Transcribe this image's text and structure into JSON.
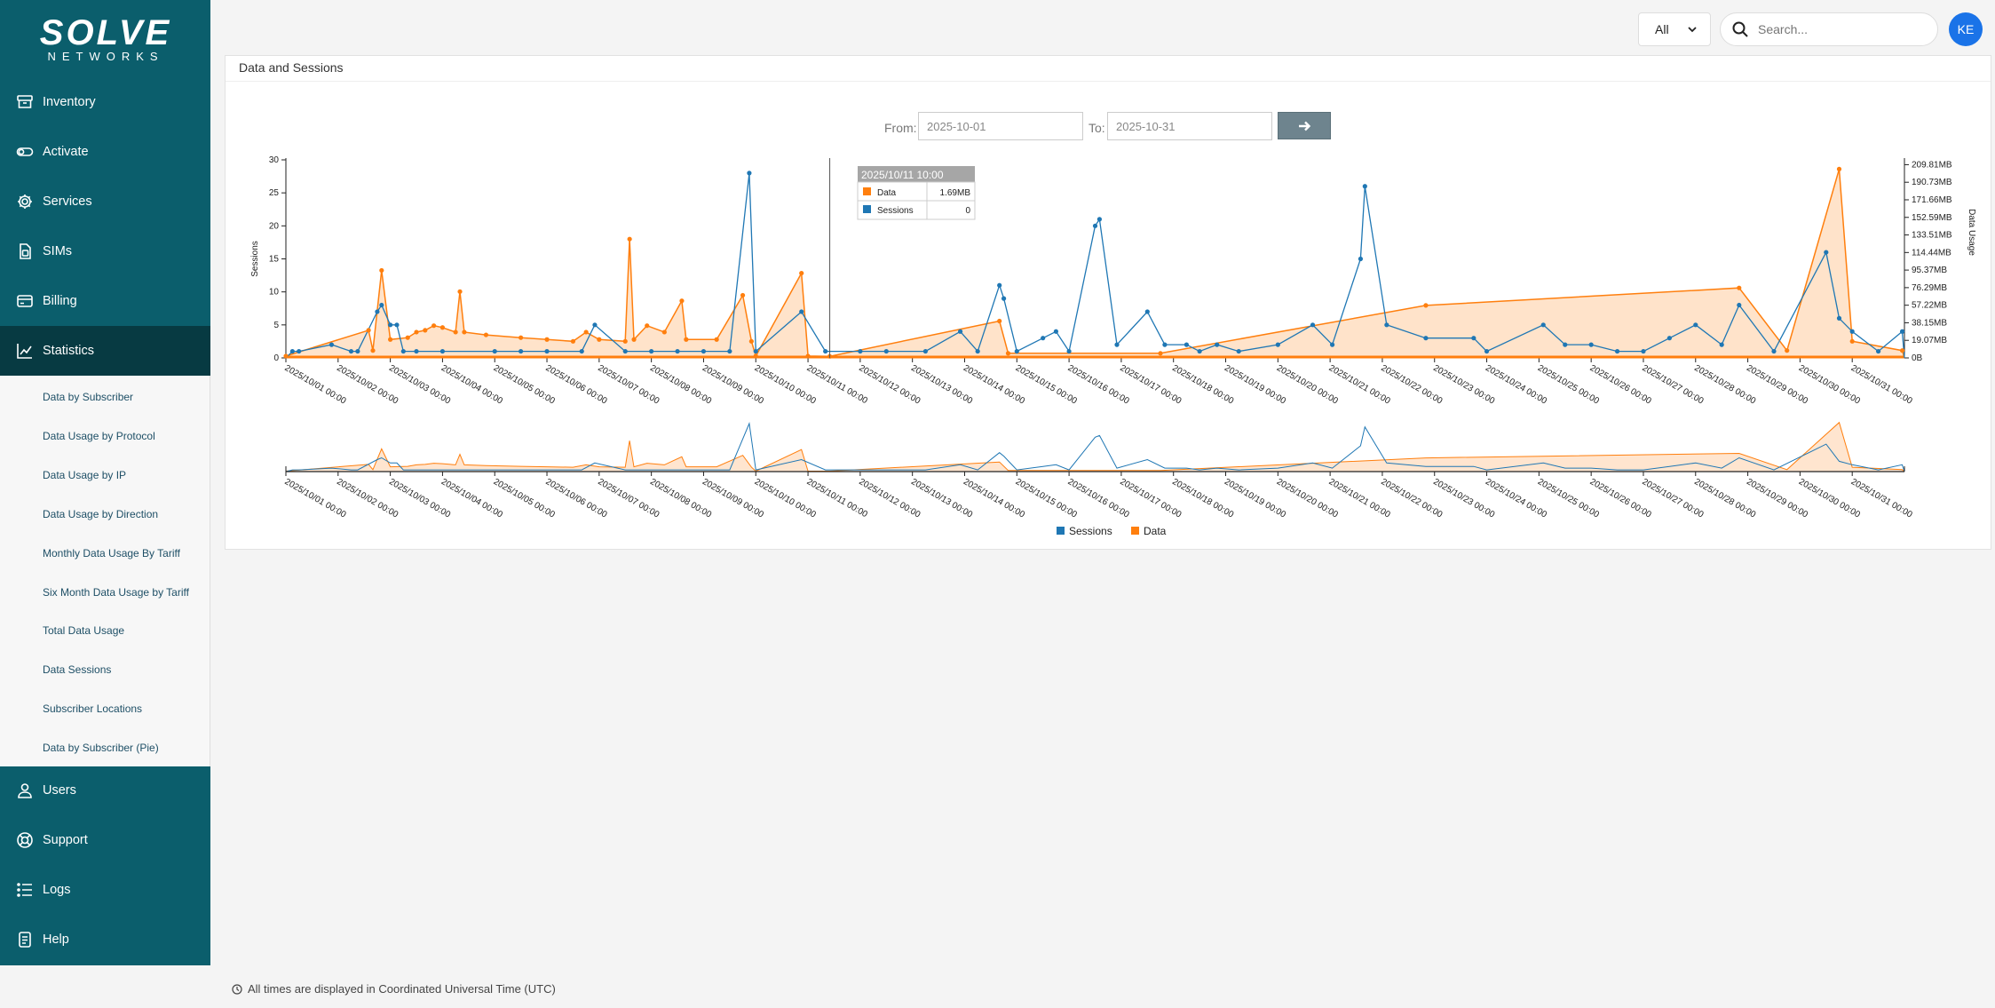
{
  "brand": {
    "name": "SOLVE",
    "tagline": "NETWORKS"
  },
  "sidebar": {
    "items": [
      {
        "label": "Inventory",
        "icon": "inventory-icon"
      },
      {
        "label": "Activate",
        "icon": "activate-icon"
      },
      {
        "label": "Services",
        "icon": "gear-icon"
      },
      {
        "label": "SIMs",
        "icon": "sim-icon"
      },
      {
        "label": "Billing",
        "icon": "card-icon"
      },
      {
        "label": "Statistics",
        "icon": "chart-icon",
        "active": true
      },
      {
        "label": "Users",
        "icon": "user-icon"
      },
      {
        "label": "Support",
        "icon": "lifebuoy-icon"
      },
      {
        "label": "Logs",
        "icon": "list-icon"
      },
      {
        "label": "Help",
        "icon": "document-icon"
      }
    ],
    "statistics_submenu": [
      "Data by Subscriber",
      "Data Usage by Protocol",
      "Data Usage by IP",
      "Data Usage by Direction",
      "Monthly Data Usage By Tariff",
      "Six Month Data Usage by Tariff",
      "Total Data Usage",
      "Data Sessions",
      "Subscriber Locations",
      "Data by Subscriber (Pie)"
    ]
  },
  "topbar": {
    "filter_value": "All",
    "search_placeholder": "Search...",
    "avatar_initials": "KE"
  },
  "panel": {
    "title": "Data and Sessions",
    "from_label": "From:",
    "from_value": "2025-10-01",
    "to_label": "To:",
    "to_value": "2025-10-31"
  },
  "tooltip": {
    "title": "2025/10/11 10:00",
    "rows": [
      {
        "name": "Data",
        "value": "1.69MB"
      },
      {
        "name": "Sessions",
        "value": "0"
      }
    ]
  },
  "footer_note": "All times are displayed in Coordinated Universal Time (UTC)",
  "chart_data": {
    "type": "line",
    "ylabel": "Sessions",
    "y2label": "Data Usage",
    "ylim": [
      0,
      30
    ],
    "y_ticks": [
      0,
      5,
      10,
      15,
      20,
      25,
      30
    ],
    "y2_ticks": [
      "0B",
      "19.07MB",
      "38.15MB",
      "57.22MB",
      "76.29MB",
      "95.37MB",
      "114.44MB",
      "133.51MB",
      "152.59MB",
      "171.66MB",
      "190.73MB",
      "209.81MB"
    ],
    "y2_max_mb": 215,
    "xlim_days": [
      1,
      32
    ],
    "x_ticks": [
      "2025/10/01 00:00",
      "2025/10/02 00:00",
      "2025/10/03 00:00",
      "2025/10/04 00:00",
      "2025/10/05 00:00",
      "2025/10/06 00:00",
      "2025/10/07 00:00",
      "2025/10/08 00:00",
      "2025/10/09 00:00",
      "2025/10/10 00:00",
      "2025/10/11 00:00",
      "2025/10/12 00:00",
      "2025/10/13 00:00",
      "2025/10/14 00:00",
      "2025/10/15 00:00",
      "2025/10/16 00:00",
      "2025/10/17 00:00",
      "2025/10/18 00:00",
      "2025/10/19 00:00",
      "2025/10/20 00:00",
      "2025/10/21 00:00",
      "2025/10/22 00:00",
      "2025/10/23 00:00",
      "2025/10/24 00:00",
      "2025/10/25 00:00",
      "2025/10/26 00:00",
      "2025/10/27 00:00",
      "2025/10/28 00:00",
      "2025/10/29 00:00",
      "2025/10/30 00:00",
      "2025/10/31 00:00"
    ],
    "legend": [
      "Sessions",
      "Data"
    ],
    "colors": {
      "sessions": "#1f77b4",
      "data": "#ff7f0e"
    },
    "series": [
      {
        "name": "Sessions",
        "points": [
          [
            "2025/10/01 03:00",
            1
          ],
          [
            "2025/10/01 06:00",
            1
          ],
          [
            "2025/10/01 21:00",
            2
          ],
          [
            "2025/10/02 06:00",
            1
          ],
          [
            "2025/10/02 09:00",
            1
          ],
          [
            "2025/10/02 18:00",
            7
          ],
          [
            "2025/10/02 20:00",
            8
          ],
          [
            "2025/10/03 00:00",
            5
          ],
          [
            "2025/10/03 03:00",
            5
          ],
          [
            "2025/10/03 06:00",
            1
          ],
          [
            "2025/10/03 12:00",
            1
          ],
          [
            "2025/10/04 00:00",
            1
          ],
          [
            "2025/10/05 00:00",
            1
          ],
          [
            "2025/10/05 12:00",
            1
          ],
          [
            "2025/10/06 00:00",
            1
          ],
          [
            "2025/10/06 16:00",
            1
          ],
          [
            "2025/10/06 22:00",
            5
          ],
          [
            "2025/10/07 12:00",
            1
          ],
          [
            "2025/10/08 00:00",
            1
          ],
          [
            "2025/10/08 12:00",
            1
          ],
          [
            "2025/10/09 00:00",
            1
          ],
          [
            "2025/10/09 12:00",
            1
          ],
          [
            "2025/10/09 21:00",
            28
          ],
          [
            "2025/10/10 00:00",
            1
          ],
          [
            "2025/10/10 21:00",
            7
          ],
          [
            "2025/10/11 08:00",
            1
          ],
          [
            "2025/10/12 00:00",
            1
          ],
          [
            "2025/10/12 12:00",
            1
          ],
          [
            "2025/10/13 06:00",
            1
          ],
          [
            "2025/10/13 22:00",
            4
          ],
          [
            "2025/10/14 06:00",
            1
          ],
          [
            "2025/10/14 16:00",
            11
          ],
          [
            "2025/10/14 18:00",
            9
          ],
          [
            "2025/10/15 00:00",
            1
          ],
          [
            "2025/10/15 12:00",
            3
          ],
          [
            "2025/10/15 18:00",
            4
          ],
          [
            "2025/10/16 00:00",
            1
          ],
          [
            "2025/10/16 12:00",
            20
          ],
          [
            "2025/10/16 14:00",
            21
          ],
          [
            "2025/10/16 22:00",
            2
          ],
          [
            "2025/10/17 12:00",
            7
          ],
          [
            "2025/10/17 20:00",
            2
          ],
          [
            "2025/10/18 06:00",
            2
          ],
          [
            "2025/10/18 12:00",
            1
          ],
          [
            "2025/10/18 20:00",
            2
          ],
          [
            "2025/10/19 06:00",
            1
          ],
          [
            "2025/10/20 00:00",
            2
          ],
          [
            "2025/10/20 16:00",
            5
          ],
          [
            "2025/10/21 01:00",
            2
          ],
          [
            "2025/10/21 14:00",
            15
          ],
          [
            "2025/10/21 16:00",
            26
          ],
          [
            "2025/10/22 02:00",
            5
          ],
          [
            "2025/10/22 20:00",
            3
          ],
          [
            "2025/10/23 18:00",
            3
          ],
          [
            "2025/10/24 00:00",
            1
          ],
          [
            "2025/10/25 02:00",
            5
          ],
          [
            "2025/10/25 12:00",
            2
          ],
          [
            "2025/10/26 00:00",
            2
          ],
          [
            "2025/10/26 12:00",
            1
          ],
          [
            "2025/10/27 00:00",
            1
          ],
          [
            "2025/10/27 12:00",
            3
          ],
          [
            "2025/10/28 00:00",
            5
          ],
          [
            "2025/10/28 12:00",
            2
          ],
          [
            "2025/10/28 20:00",
            8
          ],
          [
            "2025/10/29 12:00",
            1
          ],
          [
            "2025/10/30 12:00",
            16
          ],
          [
            "2025/10/30 18:00",
            6
          ],
          [
            "2025/10/31 00:00",
            4
          ],
          [
            "2025/10/31 12:00",
            1
          ],
          [
            "2025/10/31 23:00",
            4
          ]
        ]
      },
      {
        "name": "Data",
        "points": [
          [
            "2025/10/01 00:00",
            2
          ],
          [
            "2025/10/02 14:00",
            30
          ],
          [
            "2025/10/02 16:00",
            8
          ],
          [
            "2025/10/02 20:00",
            95
          ],
          [
            "2025/10/03 00:00",
            20
          ],
          [
            "2025/10/03 08:00",
            22
          ],
          [
            "2025/10/03 12:00",
            28
          ],
          [
            "2025/10/03 16:00",
            30
          ],
          [
            "2025/10/03 20:00",
            35
          ],
          [
            "2025/10/04 00:00",
            33
          ],
          [
            "2025/10/04 06:00",
            28
          ],
          [
            "2025/10/04 08:00",
            72
          ],
          [
            "2025/10/04 10:00",
            28
          ],
          [
            "2025/10/04 20:00",
            25
          ],
          [
            "2025/10/05 12:00",
            22
          ],
          [
            "2025/10/06 00:00",
            20
          ],
          [
            "2025/10/06 12:00",
            18
          ],
          [
            "2025/10/06 18:00",
            28
          ],
          [
            "2025/10/07 00:00",
            20
          ],
          [
            "2025/10/07 12:00",
            18
          ],
          [
            "2025/10/07 14:00",
            129
          ],
          [
            "2025/10/07 16:00",
            20
          ],
          [
            "2025/10/07 22:00",
            35
          ],
          [
            "2025/10/08 06:00",
            28
          ],
          [
            "2025/10/08 14:00",
            62
          ],
          [
            "2025/10/08 16:00",
            20
          ],
          [
            "2025/10/09 06:00",
            20
          ],
          [
            "2025/10/09 18:00",
            68
          ],
          [
            "2025/10/09 22:00",
            18
          ],
          [
            "2025/10/10 00:00",
            2
          ],
          [
            "2025/10/10 21:00",
            92
          ],
          [
            "2025/10/11 00:00",
            2
          ],
          [
            "2025/10/11 10:00",
            1.69
          ],
          [
            "2025/10/14 16:00",
            40
          ],
          [
            "2025/10/14 20:00",
            5
          ],
          [
            "2025/10/17 18:00",
            5
          ],
          [
            "2025/10/22 20:00",
            57
          ],
          [
            "2025/10/28 20:00",
            76
          ],
          [
            "2025/10/29 18:00",
            8
          ],
          [
            "2025/10/30 18:00",
            205
          ],
          [
            "2025/10/31 00:00",
            18
          ],
          [
            "2025/10/31 23:00",
            8
          ]
        ]
      }
    ]
  }
}
